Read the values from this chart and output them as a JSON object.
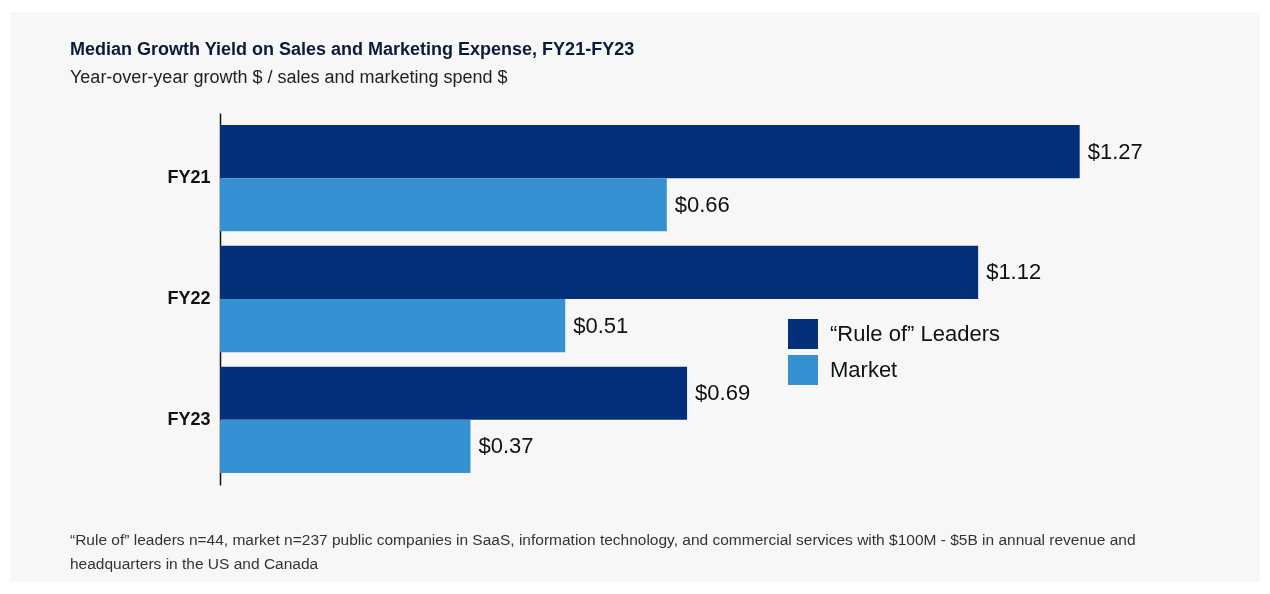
{
  "chart_data": {
    "type": "bar",
    "orientation": "horizontal",
    "title": "Median Growth Yield on Sales and Marketing Expense, FY21-FY23",
    "subtitle": "Year-over-year growth $ / sales and marketing spend $",
    "categories": [
      "FY21",
      "FY22",
      "FY23"
    ],
    "series": [
      {
        "name": "“Rule of” Leaders",
        "color": "#04307a",
        "values": [
          1.27,
          1.12,
          0.69
        ],
        "value_labels": [
          "$1.27",
          "$1.12",
          "$0.69"
        ]
      },
      {
        "name": "Market",
        "color": "#3591d1",
        "values": [
          0.66,
          0.51,
          0.37
        ],
        "value_labels": [
          "$0.66",
          "$0.51",
          "$0.37"
        ]
      }
    ],
    "legend": "bottom right",
    "grid": false,
    "annotations": [
      "“Rule of” leaders n=44, market n=237 public companies in SaaS, information technology, and commercial services with $100M - $5B in annual revenue and headquarters in the US and Canada"
    ]
  }
}
